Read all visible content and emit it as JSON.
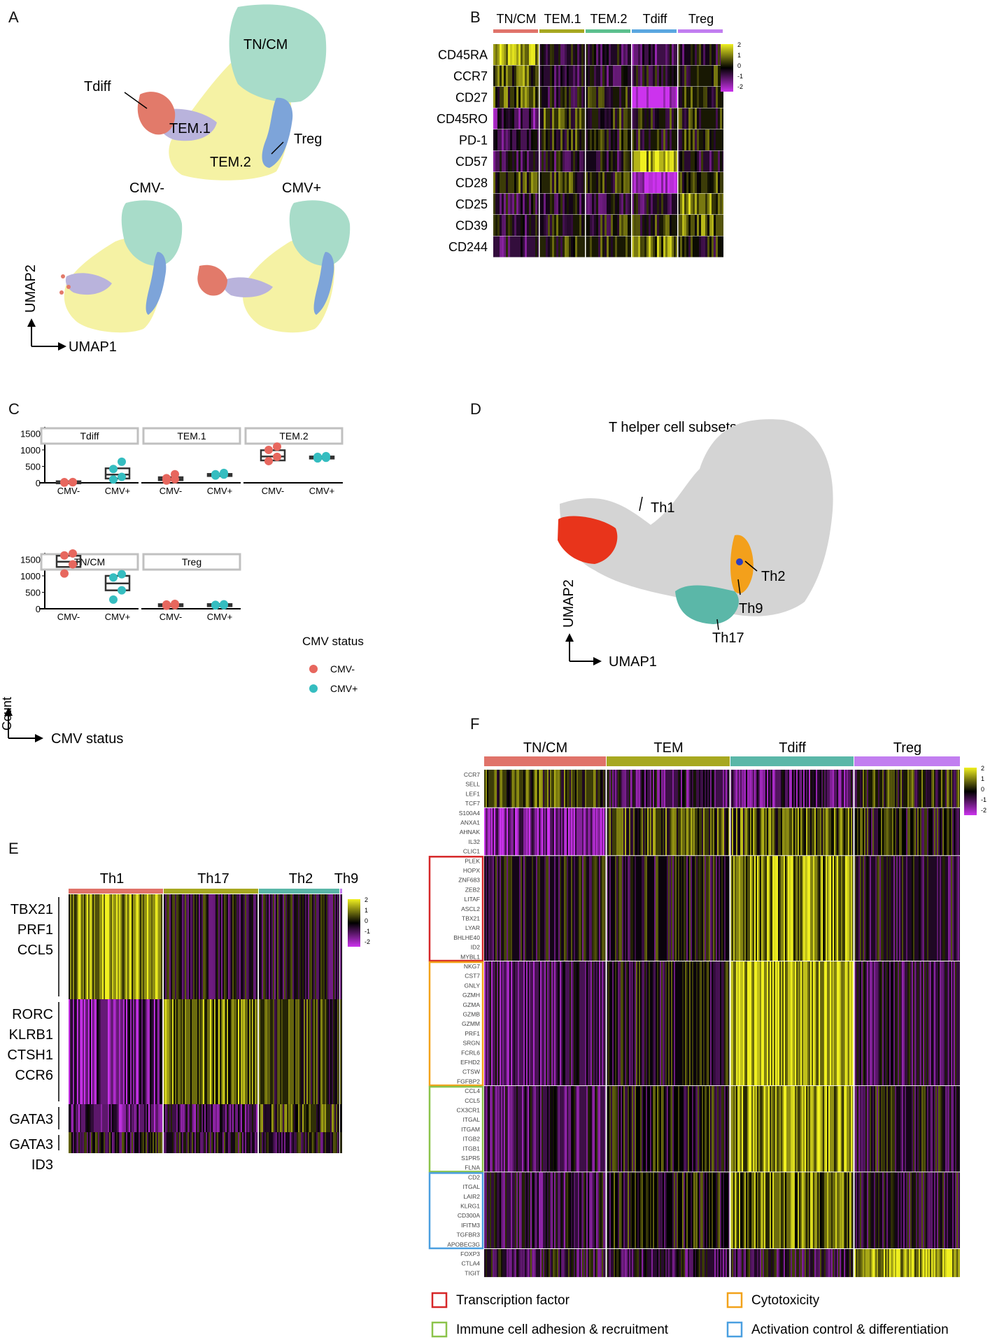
{
  "panel_letters": {
    "A": "A",
    "B": "B",
    "C": "C",
    "D": "D",
    "E": "E",
    "F": "F"
  },
  "colors": {
    "tncm": "#e0736a",
    "tem1": "#a7a821",
    "tem2": "#5cc08e",
    "tdiff": "#5aa7e0",
    "treg": "#c27ef0",
    "umap_tncm": "#a8dcc9",
    "umap_tem": "#f5f2a4",
    "umap_tem1": "#b9b3dc",
    "umap_tdiff": "#e27a6a",
    "umap_treg": "#7da4d9",
    "th1": "#e8341b",
    "th2": "#f3a01b",
    "th9": "#2a3ec2",
    "th17": "#5bb7a8",
    "grey": "#d4d4d4",
    "cmv_neg": "#e7675e",
    "cmv_pos": "#35bdc0",
    "hm_low": "#cc33ee",
    "hm_mid": "#000000",
    "hm_high": "#f0f020"
  },
  "panelA": {
    "labels": {
      "tncm": "TN/CM",
      "tdiff": "Tdiff",
      "tem1": "TEM.1",
      "treg": "Treg",
      "tem2": "TEM.2"
    },
    "sub_titles": [
      "CMV-",
      "CMV+"
    ],
    "axis_y": "UMAP2",
    "axis_x": "UMAP1"
  },
  "panelB": {
    "groups": [
      "TN/CM",
      "TEM.1",
      "TEM.2",
      "Tdiff",
      "Treg"
    ],
    "markers": [
      "CD45RA",
      "CCR7",
      "CD27",
      "CD45RO",
      "PD-1",
      "CD57",
      "CD28",
      "CD25",
      "CD39",
      "CD244"
    ],
    "legend_ticks": [
      "2",
      "1",
      "0",
      "-1",
      "-2"
    ]
  },
  "panelC": {
    "y_label": "Count",
    "x_label": "CMV status",
    "legend_title": "CMV status",
    "legend_entries": [
      "CMV-",
      "CMV+"
    ],
    "y_ticks": [
      "1500",
      "1000",
      "500",
      "0"
    ]
  },
  "chart_data": {
    "type": "box",
    "title": "",
    "xlabel": "CMV status",
    "ylabel": "Count",
    "ylim": [
      0,
      1700
    ],
    "categories": [
      "CMV-",
      "CMV+"
    ],
    "facets": [
      {
        "name": "Tdiff",
        "groups": [
          {
            "status": "CMV-",
            "q1": 5,
            "median": 15,
            "q3": 25,
            "points": [
              5,
              15,
              20,
              25
            ]
          },
          {
            "status": "CMV+",
            "q1": 130,
            "median": 250,
            "q3": 440,
            "points": [
              100,
              180,
              420,
              640
            ]
          }
        ]
      },
      {
        "name": "TEM.1",
        "groups": [
          {
            "status": "CMV-",
            "q1": 80,
            "median": 120,
            "q3": 170,
            "points": [
              70,
              110,
              140,
              260
            ]
          },
          {
            "status": "CMV+",
            "q1": 220,
            "median": 250,
            "q3": 270,
            "points": [
              220,
              250,
              260,
              300
            ]
          }
        ]
      },
      {
        "name": "TEM.2",
        "groups": [
          {
            "status": "CMV-",
            "q1": 680,
            "median": 800,
            "q3": 990,
            "points": [
              660,
              790,
              1000,
              1100
            ]
          },
          {
            "status": "CMV+",
            "q1": 740,
            "median": 770,
            "q3": 800,
            "points": [
              740,
              760,
              790,
              810
            ]
          }
        ]
      },
      {
        "name": "TN/CM",
        "groups": [
          {
            "status": "CMV-",
            "q1": 1270,
            "median": 1430,
            "q3": 1610,
            "points": [
              1070,
              1350,
              1620,
              1680
            ]
          },
          {
            "status": "CMV+",
            "q1": 560,
            "median": 770,
            "q3": 1000,
            "points": [
              280,
              560,
              950,
              1050
            ]
          }
        ]
      },
      {
        "name": "Treg",
        "groups": [
          {
            "status": "CMV-",
            "q1": 90,
            "median": 110,
            "q3": 140,
            "points": [
              90,
              110,
              130,
              150
            ]
          },
          {
            "status": "CMV+",
            "q1": 100,
            "median": 115,
            "q3": 130,
            "points": [
              100,
              110,
              120,
              135
            ]
          }
        ]
      }
    ]
  },
  "panelD": {
    "title": "T helper cell subsets",
    "labels": {
      "th1": "Th1",
      "th2": "Th2",
      "th9": "Th9",
      "th17": "Th17"
    },
    "axis_y": "UMAP2",
    "axis_x": "UMAP1"
  },
  "panelE": {
    "groups": [
      "Th1",
      "Th17",
      "Th2",
      "Th9"
    ],
    "gene_blocks": [
      [
        "TBX21",
        "PRF1",
        "CCL5"
      ],
      [
        "RORC",
        "KLRB1",
        "CTSH1",
        "CCR6"
      ],
      [
        "GATA3"
      ],
      [
        "GATA3",
        "ID3"
      ]
    ],
    "legend_ticks": [
      "2",
      "1",
      "0",
      "-1",
      "-2"
    ]
  },
  "panelF": {
    "groups": [
      "TN/CM",
      "TEM",
      "Tdiff",
      "Treg"
    ],
    "gene_blocks": [
      {
        "box": "none",
        "genes": [
          "CCR7",
          "SELL",
          "LEF1",
          "TCF7"
        ]
      },
      {
        "box": "none",
        "genes": [
          "S100A4",
          "ANXA1",
          "AHNAK",
          "IL32",
          "CLIC1"
        ]
      },
      {
        "box": "red",
        "genes": [
          "PLEK",
          "HOPX",
          "ZNF683",
          "ZEB2",
          "LITAF",
          "ASCL2",
          "TBX21",
          "LYAR",
          "BHLHE40",
          "ID2",
          "MYBL1"
        ]
      },
      {
        "box": "orange",
        "genes": [
          "NKG7",
          "CST7",
          "GNLY",
          "GZMH",
          "GZMA",
          "GZMB",
          "GZMM",
          "PRF1",
          "SRGN",
          "FCRL6",
          "EFHD2",
          "CTSW",
          "FGFBP2"
        ]
      },
      {
        "box": "green",
        "genes": [
          "CCL4",
          "CCL5",
          "CX3CR1",
          "ITGAL",
          "ITGAM",
          "ITGB2",
          "ITGB1",
          "S1PR5",
          "FLNA"
        ]
      },
      {
        "box": "blue",
        "genes": [
          "CD2",
          "ITGAL",
          "LAIR2",
          "KLRG1",
          "CD300A",
          "IFITM3",
          "TGFBR3",
          "APOBEC3G"
        ]
      },
      {
        "box": "none",
        "genes": [
          "FOXP3",
          "CTLA4",
          "TIGIT"
        ]
      }
    ],
    "legend_ticks": [
      "2",
      "1",
      "0",
      "-1",
      "-2"
    ],
    "box_legend": [
      {
        "key": "red",
        "label": "Transcription factor"
      },
      {
        "key": "orange",
        "label": "Cytotoxicity"
      },
      {
        "key": "green",
        "label": "Immune cell adhesion & recruitment"
      },
      {
        "key": "blue",
        "label": "Activation control & differentiation"
      }
    ]
  }
}
